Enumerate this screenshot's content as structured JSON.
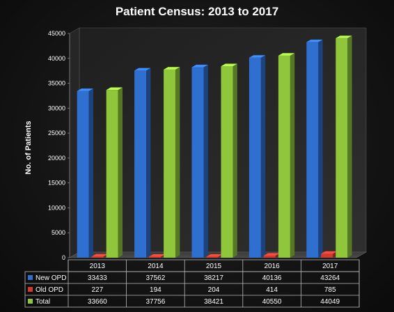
{
  "chart_data": {
    "type": "bar",
    "title": "Patient Census: 2013 to 2017",
    "xlabel": "",
    "ylabel": "No. of Patients",
    "ylim": [
      0,
      45000
    ],
    "yticks": [
      0,
      5000,
      10000,
      15000,
      20000,
      25000,
      30000,
      35000,
      40000,
      45000
    ],
    "categories": [
      "2013",
      "2014",
      "2015",
      "2016",
      "2017"
    ],
    "series": [
      {
        "name": "New OPD",
        "color": "#2f6fd0",
        "values": [
          33433,
          37562,
          38217,
          40136,
          43264
        ]
      },
      {
        "name": "Old OPD",
        "color": "#d23a2e",
        "values": [
          227,
          194,
          204,
          414,
          785
        ]
      },
      {
        "name": "Total",
        "color": "#8fc63c",
        "values": [
          33660,
          37756,
          38421,
          40550,
          44049
        ]
      }
    ],
    "legend_placement": "data-table",
    "grid": false,
    "style": "3d-column"
  }
}
